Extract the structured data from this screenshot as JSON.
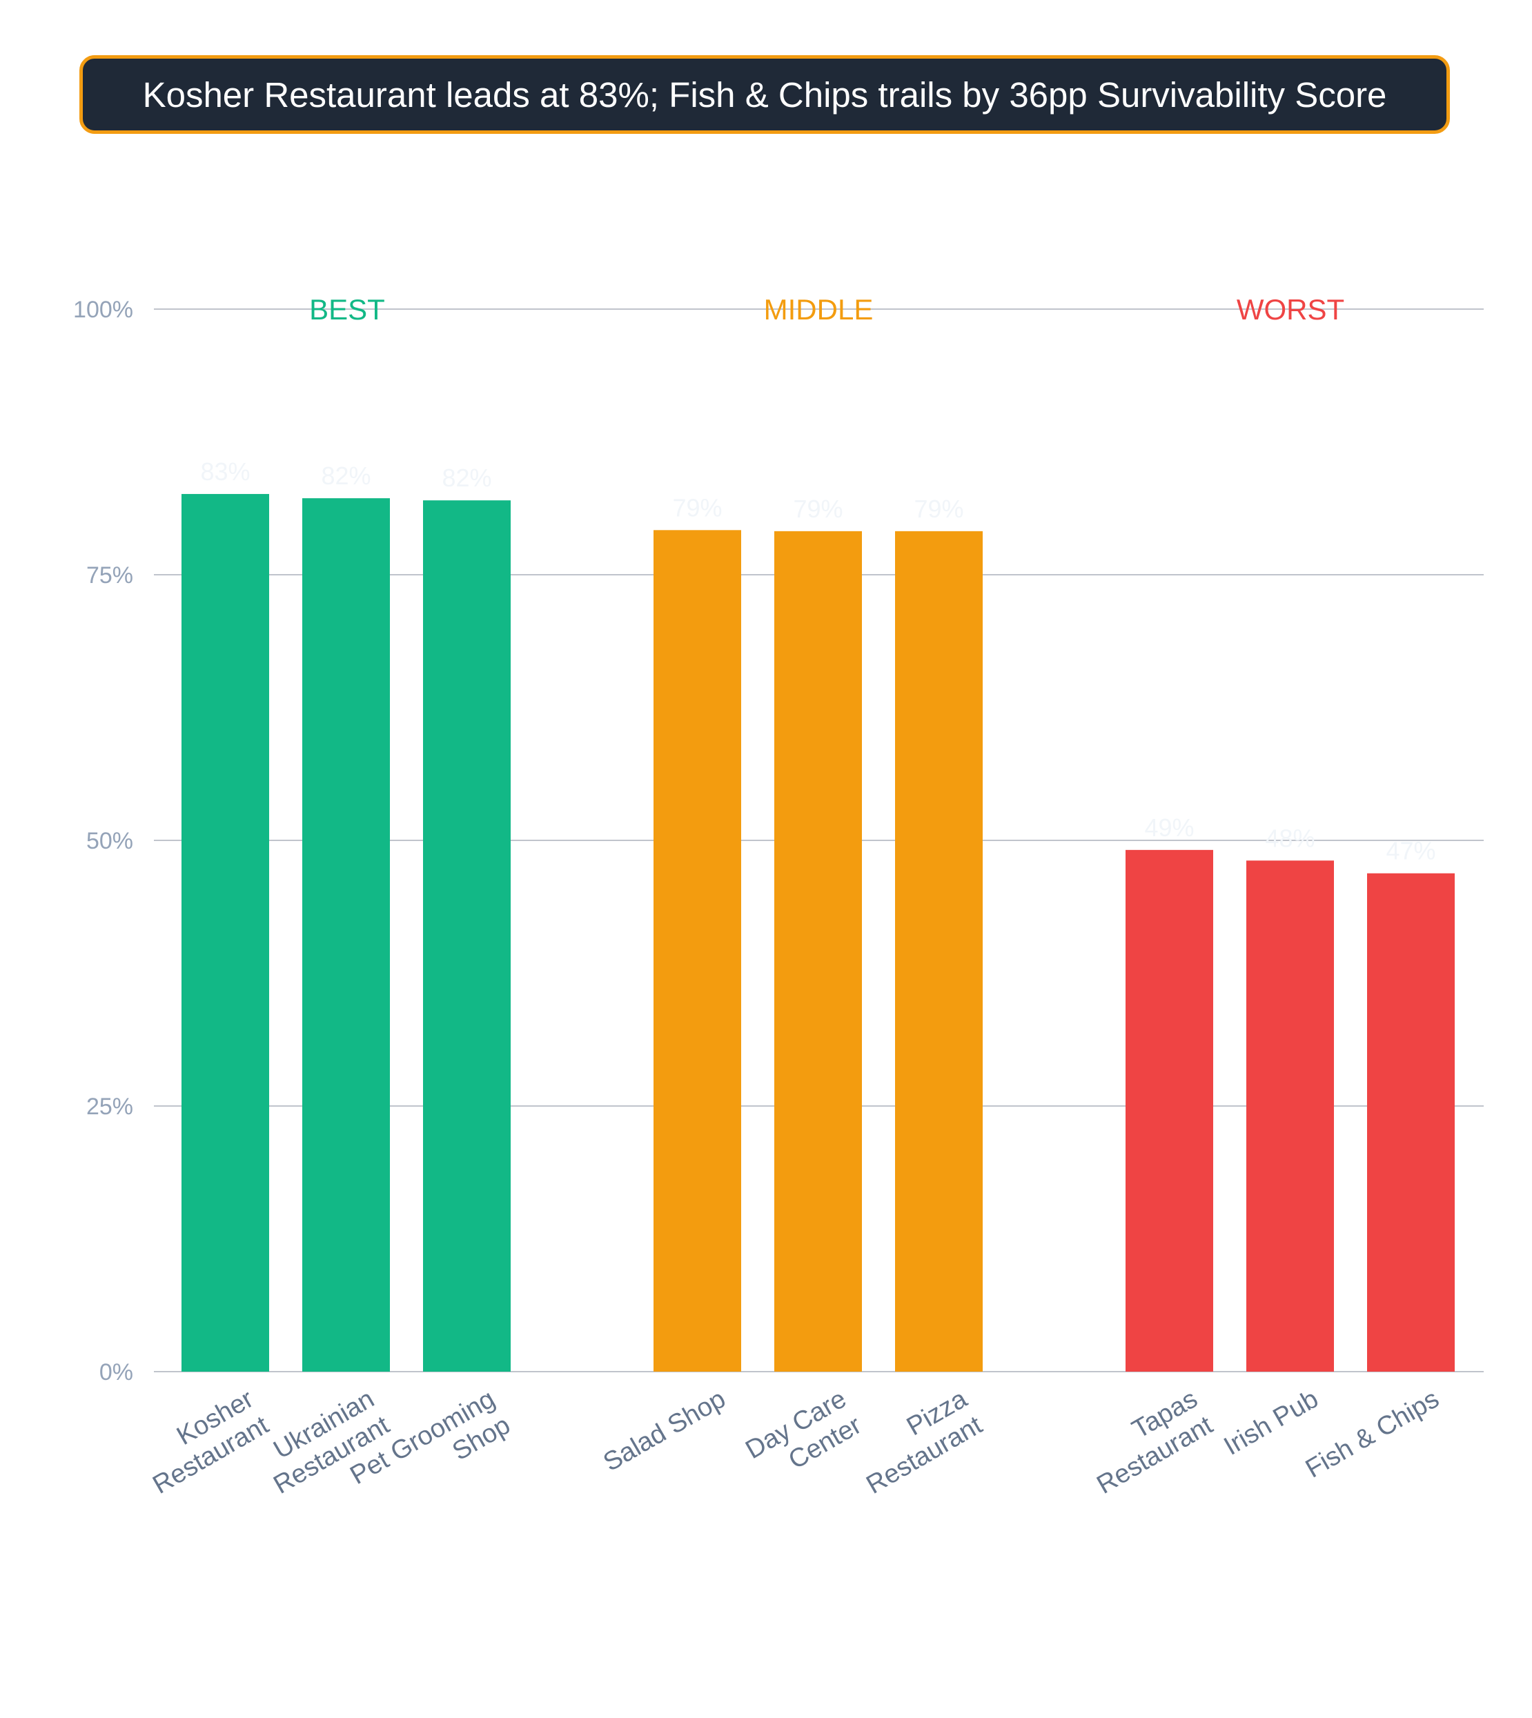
{
  "title": "Kosher Restaurant leads at 83%; Fish & Chips trails by 36pp Survivability Score",
  "colors": {
    "title_bg": "#1f2937",
    "title_border": "#f39c12",
    "best": "#12b886",
    "middle": "#f39c0f",
    "worst": "#ef4444",
    "grid": "#c0c4cc",
    "tick_text": "#94a3b8",
    "category_text": "#64748b"
  },
  "chart_data": {
    "type": "bar",
    "title": "Kosher Restaurant leads at 83%; Fish & Chips trails by 36pp Survivability Score",
    "ylim": [
      0,
      100
    ],
    "yticks": [
      "0%",
      "25%",
      "50%",
      "75%",
      "100%"
    ],
    "ytick_values": [
      0,
      25,
      50,
      75,
      100
    ],
    "grid": true,
    "groups": [
      {
        "name": "BEST",
        "color": "#12b886",
        "categories": [
          [
            "Kosher",
            "Restaurant"
          ],
          [
            "Ukrainian",
            "Restaurant"
          ],
          [
            "Pet Grooming",
            "Shop"
          ]
        ],
        "values": [
          82.6,
          82.2,
          82.0
        ],
        "labels": [
          "83%",
          "82%",
          "82%"
        ]
      },
      {
        "name": "MIDDLE",
        "color": "#f39c0f",
        "categories": [
          [
            "Salad Shop"
          ],
          [
            "Day Care",
            "Center"
          ],
          [
            "Pizza",
            "Restaurant"
          ]
        ],
        "values": [
          79.2,
          79.1,
          79.1
        ],
        "labels": [
          "79%",
          "79%",
          "79%"
        ]
      },
      {
        "name": "WORST",
        "color": "#ef4444",
        "categories": [
          [
            "Tapas",
            "Restaurant"
          ],
          [
            "Irish Pub"
          ],
          [
            "Fish & Chips"
          ]
        ],
        "values": [
          49.1,
          48.1,
          46.9
        ],
        "labels": [
          "49%",
          "48%",
          "47%"
        ]
      }
    ]
  }
}
